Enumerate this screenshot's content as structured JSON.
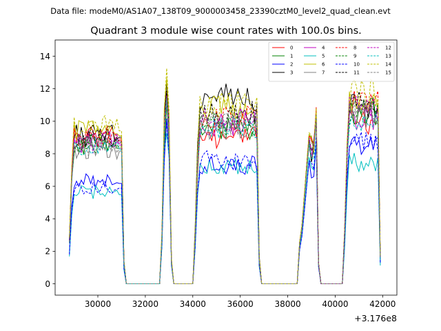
{
  "chart_data": {
    "type": "line",
    "suptitle": "Data file: modeM0/AS1A07_138T09_9000003458_23390cztM0_level2_quad_clean.evt",
    "title": "Quadrant 3 module wise count rates with 100.0s bins.",
    "xlabel": "",
    "ylabel": "",
    "x_offset_label": "+3.176e8",
    "xlim": [
      28200,
      42600
    ],
    "ylim": [
      -0.7,
      15.0
    ],
    "x_ticks": [
      30000,
      32000,
      34000,
      36000,
      38000,
      40000,
      42000
    ],
    "x_tick_labels": [
      "30000",
      "32000",
      "34000",
      "36000",
      "38000",
      "40000",
      "42000"
    ],
    "y_ticks": [
      0,
      2,
      4,
      6,
      8,
      10,
      12,
      14
    ],
    "y_tick_labels": [
      "0",
      "2",
      "4",
      "6",
      "8",
      "10",
      "12",
      "14"
    ],
    "grid": false,
    "legend_position": "top-right",
    "segments": [
      {
        "start": 28800,
        "end": 31100,
        "peak_slot": 1,
        "gap_after": true
      },
      {
        "start": 32700,
        "end": 33100,
        "peak_slot": 2,
        "gap_after": true
      },
      {
        "start": 34100,
        "end": 36800,
        "peak_slot": 1,
        "gap_after": true
      },
      {
        "start": 38500,
        "end": 39300,
        "peak_slot": 7,
        "gap_after": true
      },
      {
        "start": 40400,
        "end": 41900,
        "peak_slot": 1,
        "gap_after": false
      }
    ],
    "series": [
      {
        "name": "0",
        "color": "#ff0000",
        "dash": false,
        "levels": [
          9.0,
          9.2,
          9.0,
          8.5,
          10.0
        ]
      },
      {
        "name": "1",
        "color": "#008000",
        "dash": false,
        "levels": [
          8.5,
          9.0,
          9.5,
          8.5,
          10.5
        ]
      },
      {
        "name": "2",
        "color": "#0000ff",
        "dash": false,
        "levels": [
          6.3,
          8.0,
          7.3,
          7.0,
          8.5
        ]
      },
      {
        "name": "3",
        "color": "#000000",
        "dash": false,
        "levels": [
          9.2,
          10.0,
          11.5,
          8.0,
          11.0
        ]
      },
      {
        "name": "4",
        "color": "#bf00bf",
        "dash": false,
        "levels": [
          8.8,
          9.4,
          9.8,
          8.3,
          10.2
        ]
      },
      {
        "name": "5",
        "color": "#00bfbf",
        "dash": false,
        "levels": [
          5.6,
          7.5,
          7.2,
          7.2,
          7.5
        ]
      },
      {
        "name": "6",
        "color": "#bfbf00",
        "dash": false,
        "levels": [
          9.3,
          10.2,
          10.8,
          8.5,
          11.2
        ]
      },
      {
        "name": "7",
        "color": "#808080",
        "dash": false,
        "levels": [
          8.3,
          9.0,
          9.6,
          8.1,
          10.4
        ]
      },
      {
        "name": "8",
        "color": "#ff0000",
        "dash": true,
        "levels": [
          9.1,
          9.5,
          10.2,
          8.4,
          11.3
        ]
      },
      {
        "name": "9",
        "color": "#008000",
        "dash": true,
        "levels": [
          8.6,
          9.2,
          9.7,
          8.2,
          10.6
        ]
      },
      {
        "name": "10",
        "color": "#0000ff",
        "dash": true,
        "levels": [
          6.0,
          7.8,
          7.6,
          7.0,
          8.8
        ]
      },
      {
        "name": "11",
        "color": "#000000",
        "dash": true,
        "levels": [
          8.9,
          9.6,
          10.5,
          8.3,
          11.0
        ]
      },
      {
        "name": "12",
        "color": "#bf00bf",
        "dash": true,
        "levels": [
          8.7,
          9.3,
          10.0,
          8.2,
          10.8
        ]
      },
      {
        "name": "13",
        "color": "#00bfbf",
        "dash": true,
        "levels": [
          8.4,
          9.0,
          9.7,
          8.0,
          10.2
        ]
      },
      {
        "name": "14",
        "color": "#bfbf00",
        "dash": true,
        "levels": [
          9.6,
          10.8,
          11.0,
          8.6,
          11.8
        ]
      },
      {
        "name": "15",
        "color": "#808080",
        "dash": true,
        "levels": [
          8.5,
          9.1,
          9.9,
          8.1,
          10.5
        ]
      }
    ]
  }
}
